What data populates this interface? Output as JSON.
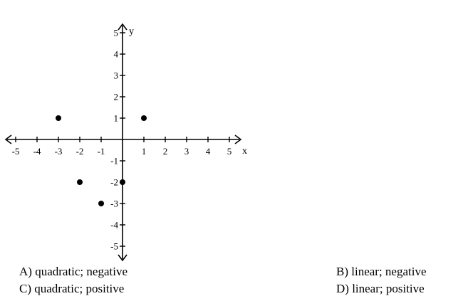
{
  "chart_data": {
    "type": "scatter",
    "xlabel": "x",
    "ylabel": "y",
    "xlim": [
      -5,
      5
    ],
    "ylim": [
      -5,
      5
    ],
    "grid": false,
    "x_ticks": [
      -5,
      -4,
      -3,
      -2,
      -1,
      1,
      2,
      3,
      4,
      5
    ],
    "y_ticks": [
      5,
      4,
      3,
      2,
      1,
      -1,
      -2,
      -3,
      -4,
      -5
    ],
    "points": [
      {
        "x": -3,
        "y": 1
      },
      {
        "x": 1,
        "y": 1
      },
      {
        "x": -2,
        "y": -2
      },
      {
        "x": 0,
        "y": -2
      },
      {
        "x": -1,
        "y": -3
      }
    ]
  },
  "choices": {
    "a": "A) quadratic; negative",
    "b": "B) linear; negative",
    "c": "C) quadratic; positive",
    "d": "D) linear; positive"
  }
}
